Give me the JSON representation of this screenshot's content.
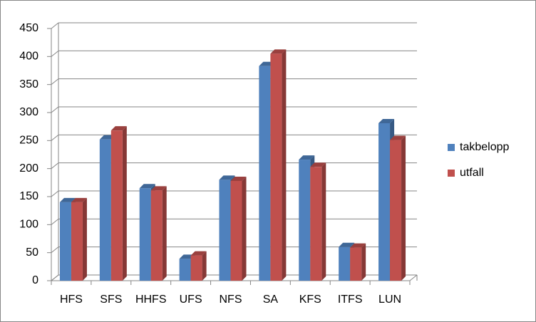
{
  "chart_data": {
    "type": "bar3d",
    "categories": [
      "HFS",
      "SFS",
      "HHFS",
      "UFS",
      "NFS",
      "SA",
      "KFS",
      "ITFS",
      "LUN"
    ],
    "series": [
      {
        "name": "takbelopp",
        "color": "#4f81bd",
        "values": [
          140,
          252,
          165,
          39,
          180,
          383,
          216,
          60,
          281
        ]
      },
      {
        "name": "utfall",
        "color": "#c0504d",
        "values": [
          140,
          268,
          161,
          45,
          178,
          405,
          203,
          59,
          251
        ]
      }
    ],
    "ylim": [
      0,
      450
    ],
    "yticks": [
      0,
      50,
      100,
      150,
      200,
      250,
      300,
      350,
      400,
      450
    ],
    "grid": true,
    "legend": "right"
  }
}
